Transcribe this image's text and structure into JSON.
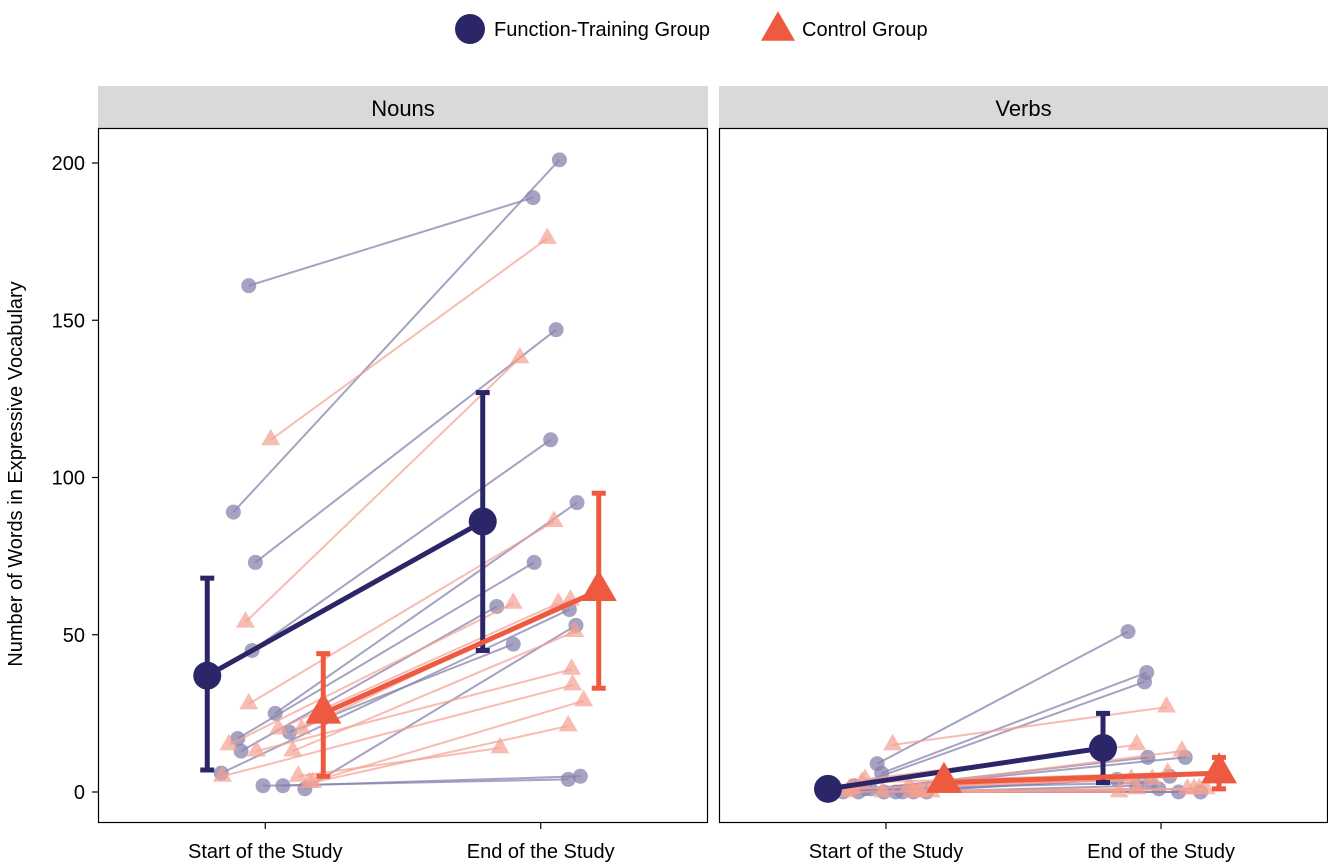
{
  "colors": {
    "function_training": "#2b2667",
    "control": "#ee5a40",
    "strip_bg": "#d9d9d9",
    "individual_ft": "#8883ad",
    "individual_ctrl": "#f4a091"
  },
  "chart_data": {
    "type": "line",
    "ylabel": "Number of Words in Expressive Vocabulary",
    "ylim": [
      0,
      210
    ],
    "yticks": [
      0,
      50,
      100,
      150,
      200
    ],
    "categories": [
      "Start of the Study",
      "End of the Study"
    ],
    "legend": {
      "position": "top",
      "items": [
        {
          "name": "Function-Training Group",
          "shape": "circle",
          "color": "#2b2667"
        },
        {
          "name": "Control Group",
          "shape": "triangle",
          "color": "#ee5a40"
        }
      ]
    },
    "panels": [
      {
        "name": "Nouns",
        "means": [
          {
            "group": "Function-Training Group",
            "values": [
              37,
              86
            ],
            "ci_low": [
              7,
              45
            ],
            "ci_high": [
              68,
              127
            ]
          },
          {
            "group": "Control Group",
            "values": [
              25,
              64
            ],
            "ci_low": [
              5,
              33
            ],
            "ci_high": [
              44,
              95
            ]
          }
        ],
        "individuals": [
          {
            "group": "Function-Training Group",
            "start": 161,
            "end": 189,
            "jitter": [
              -0.15,
              -0.07
            ]
          },
          {
            "group": "Function-Training Group",
            "start": 89,
            "end": 201,
            "jitter": [
              -0.29,
              0.17
            ]
          },
          {
            "group": "Function-Training Group",
            "start": 73,
            "end": 147,
            "jitter": [
              -0.09,
              0.14
            ]
          },
          {
            "group": "Function-Training Group",
            "start": 45,
            "end": 112,
            "jitter": [
              -0.12,
              0.09
            ]
          },
          {
            "group": "Function-Training Group",
            "start": 25,
            "end": 92,
            "jitter": [
              0.09,
              0.33
            ]
          },
          {
            "group": "Function-Training Group",
            "start": 17,
            "end": 73,
            "jitter": [
              -0.25,
              -0.06
            ]
          },
          {
            "group": "Function-Training Group",
            "start": 13,
            "end": 59,
            "jitter": [
              -0.22,
              -0.4
            ]
          },
          {
            "group": "Function-Training Group",
            "start": 6,
            "end": 58,
            "jitter": [
              -0.4,
              0.26
            ]
          },
          {
            "group": "Function-Training Group",
            "start": 2,
            "end": 4,
            "jitter": [
              -0.02,
              0.25
            ]
          },
          {
            "group": "Function-Training Group",
            "start": 2,
            "end": 5,
            "jitter": [
              0.16,
              0.36
            ]
          },
          {
            "group": "Function-Training Group",
            "start": 1,
            "end": 53,
            "jitter": [
              0.36,
              0.32
            ]
          },
          {
            "group": "Function-Training Group",
            "start": 19,
            "end": 47,
            "jitter": [
              0.22,
              -0.25
            ]
          },
          {
            "group": "Control Group",
            "start": 112,
            "end": 176,
            "jitter": [
              0.05,
              0.06
            ]
          },
          {
            "group": "Control Group",
            "start": 54,
            "end": 138,
            "jitter": [
              -0.18,
              -0.19
            ]
          },
          {
            "group": "Control Group",
            "start": 28,
            "end": 86,
            "jitter": [
              -0.15,
              0.12
            ]
          },
          {
            "group": "Control Group",
            "start": 20,
            "end": 60,
            "jitter": [
              0.12,
              0.16
            ]
          },
          {
            "group": "Control Group",
            "start": 20,
            "end": 61,
            "jitter": [
              0.33,
              0.27
            ]
          },
          {
            "group": "Control Group",
            "start": 15,
            "end": 60,
            "jitter": [
              -0.33,
              -0.25
            ]
          },
          {
            "group": "Control Group",
            "start": 13,
            "end": 51,
            "jitter": [
              0.25,
              0.31
            ]
          },
          {
            "group": "Control Group",
            "start": 13,
            "end": 39,
            "jitter": [
              -0.08,
              0.28
            ]
          },
          {
            "group": "Control Group",
            "start": 5,
            "end": 34,
            "jitter": [
              -0.39,
              0.29
            ]
          },
          {
            "group": "Control Group",
            "start": 5,
            "end": 14,
            "jitter": [
              0.3,
              -0.37
            ]
          },
          {
            "group": "Control Group",
            "start": 3,
            "end": 29,
            "jitter": [
              0.4,
              0.39
            ]
          },
          {
            "group": "Control Group",
            "start": 3,
            "end": 21,
            "jitter": [
              0.43,
              0.25
            ]
          }
        ]
      },
      {
        "name": "Verbs",
        "means": [
          {
            "group": "Function-Training Group",
            "values": [
              1,
              14
            ],
            "ci_low": [
              0,
              3
            ],
            "ci_high": [
              2,
              25
            ]
          },
          {
            "group": "Control Group",
            "values": [
              3,
              6
            ],
            "ci_low": [
              1,
              1
            ],
            "ci_high": [
              5,
              11
            ]
          }
        ],
        "individuals": [
          {
            "group": "Function-Training Group",
            "start": 9,
            "end": 51,
            "jitter": [
              -0.08,
              -0.3
            ]
          },
          {
            "group": "Function-Training Group",
            "start": 6,
            "end": 38,
            "jitter": [
              -0.04,
              -0.13
            ]
          },
          {
            "group": "Function-Training Group",
            "start": 2,
            "end": 35,
            "jitter": [
              -0.29,
              -0.15
            ]
          },
          {
            "group": "Function-Training Group",
            "start": 1,
            "end": 11,
            "jitter": [
              -0.14,
              -0.12
            ]
          },
          {
            "group": "Function-Training Group",
            "start": 0,
            "end": 11,
            "jitter": [
              -0.39,
              0.22
            ]
          },
          {
            "group": "Function-Training Group",
            "start": 0,
            "end": 5,
            "jitter": [
              0.09,
              0.08
            ]
          },
          {
            "group": "Function-Training Group",
            "start": 0,
            "end": 4,
            "jitter": [
              0.15,
              -0.4
            ]
          },
          {
            "group": "Function-Training Group",
            "start": 0,
            "end": 2,
            "jitter": [
              0.25,
              -0.22
            ]
          },
          {
            "group": "Function-Training Group",
            "start": 0,
            "end": 1,
            "jitter": [
              -0.25,
              -0.02
            ]
          },
          {
            "group": "Function-Training Group",
            "start": 0,
            "end": 0,
            "jitter": [
              0.37,
              0.36
            ]
          },
          {
            "group": "Function-Training Group",
            "start": 0,
            "end": 0,
            "jitter": [
              -0.02,
              0.16
            ]
          },
          {
            "group": "Function-Training Group",
            "start": 1,
            "end": 3,
            "jitter": [
              -0.19,
              -0.1
            ]
          },
          {
            "group": "Control Group",
            "start": 15,
            "end": 27,
            "jitter": [
              0.06,
              0.05
            ]
          },
          {
            "group": "Control Group",
            "start": 4,
            "end": 15,
            "jitter": [
              -0.19,
              -0.22
            ]
          },
          {
            "group": "Control Group",
            "start": 2,
            "end": 13,
            "jitter": [
              0.21,
              0.19
            ]
          },
          {
            "group": "Control Group",
            "start": 1,
            "end": 4,
            "jitter": [
              -0.33,
              -0.08
            ]
          },
          {
            "group": "Control Group",
            "start": 0,
            "end": 1,
            "jitter": [
              -0.35,
              0.24
            ]
          },
          {
            "group": "Control Group",
            "start": 0,
            "end": 1,
            "jitter": [
              0.3,
              0.3
            ]
          },
          {
            "group": "Control Group",
            "start": 0,
            "end": 1,
            "jitter": [
              0.32,
              0.35
            ]
          },
          {
            "group": "Control Group",
            "start": 0,
            "end": 1,
            "jitter": [
              0.41,
              0.41
            ]
          },
          {
            "group": "Control Group",
            "start": 1,
            "end": 4,
            "jitter": [
              -0.3,
              -0.27
            ]
          },
          {
            "group": "Control Group",
            "start": 0,
            "end": 0,
            "jitter": [
              0.24,
              -0.38
            ]
          },
          {
            "group": "Control Group",
            "start": 3,
            "end": 6,
            "jitter": [
              -0.22,
              0.06
            ]
          },
          {
            "group": "Control Group",
            "start": 0,
            "end": 1,
            "jitter": [
              -0.03,
              -0.22
            ]
          }
        ]
      }
    ]
  }
}
